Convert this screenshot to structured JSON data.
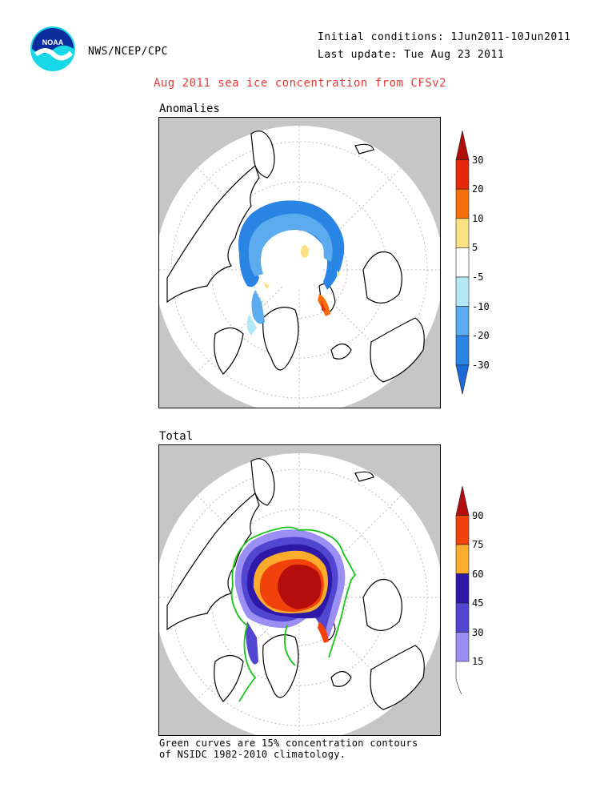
{
  "header": {
    "agency": "NWS/NCEP/CPC",
    "initial_conditions": "Initial conditions: 1Jun2011-10Jun2011",
    "last_update": "Last update: Tue Aug 23 2011",
    "title": "Aug 2011 sea ice concentration from CFSv2"
  },
  "panels": {
    "anomalies": {
      "label": "Anomalies",
      "colorbar": [
        {
          "label": "30",
          "color": "#b20b0b"
        },
        {
          "label": "20",
          "color": "#e5280c"
        },
        {
          "label": "10",
          "color": "#f76e0a"
        },
        {
          "label": "5",
          "color": "#fbe181"
        },
        {
          "label": "-5",
          "color": "#ffffff"
        },
        {
          "label": "-10",
          "color": "#b3e9f7"
        },
        {
          "label": "-20",
          "color": "#5cabef"
        },
        {
          "label": "-30",
          "color": "#2a84e4"
        },
        {
          "label": "",
          "color": "#1b6ad7"
        }
      ]
    },
    "total": {
      "label": "Total",
      "colorbar": [
        {
          "label": "90",
          "color": "#b40d0d"
        },
        {
          "label": "75",
          "color": "#f0420a"
        },
        {
          "label": "60",
          "color": "#fbac2d"
        },
        {
          "label": "45",
          "color": "#2d18a8"
        },
        {
          "label": "30",
          "color": "#5046cf"
        },
        {
          "label": "15",
          "color": "#9b8ff3"
        },
        {
          "label": "",
          "color": "#ffffff"
        }
      ]
    }
  },
  "footnote": "Green curves are 15% concentration contours\nof NSIDC 1982-2010 climatology.",
  "colors": {
    "title": "#e33b3b",
    "land": "#ffffff",
    "ocean_background": "#c6c6c6",
    "climatology_contour": "#18c418"
  },
  "icons": {
    "logo": "noaa-logo"
  }
}
